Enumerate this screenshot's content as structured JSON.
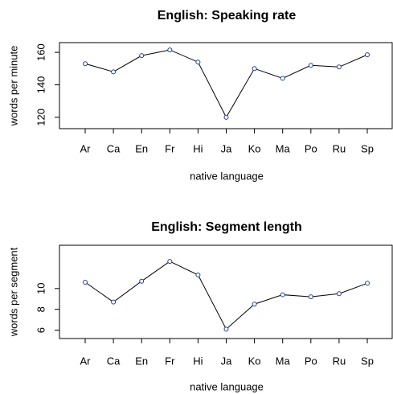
{
  "chart_data": [
    {
      "type": "line",
      "title": "English: Speaking rate",
      "x_label": "native language",
      "y_label": "words per minute",
      "categories": [
        "Ar",
        "Ca",
        "En",
        "Fr",
        "Hi",
        "Ja",
        "Ko",
        "Ma",
        "Po",
        "Ru",
        "Sp"
      ],
      "values": [
        153,
        148,
        158,
        161.5,
        154,
        120,
        150,
        144,
        152,
        151,
        158.5
      ],
      "color": "#000000",
      "marker_color": "#1f3f9f",
      "ylim": [
        113,
        166
      ],
      "yticks": [
        120,
        140,
        160
      ]
    },
    {
      "type": "line",
      "title": "English: Segment length",
      "x_label": "native language",
      "y_label": "words per segment",
      "categories": [
        "Ar",
        "Ca",
        "En",
        "Fr",
        "Hi",
        "Ja",
        "Ko",
        "Ma",
        "Po",
        "Ru",
        "Sp"
      ],
      "values": [
        10.6,
        8.7,
        10.7,
        12.6,
        11.3,
        6.1,
        8.5,
        9.4,
        9.2,
        9.5,
        10.5
      ],
      "color": "#000000",
      "marker_color": "#1f3f9f",
      "ylim": [
        5.2,
        14.15
      ],
      "yticks": [
        6,
        8,
        10
      ]
    }
  ]
}
